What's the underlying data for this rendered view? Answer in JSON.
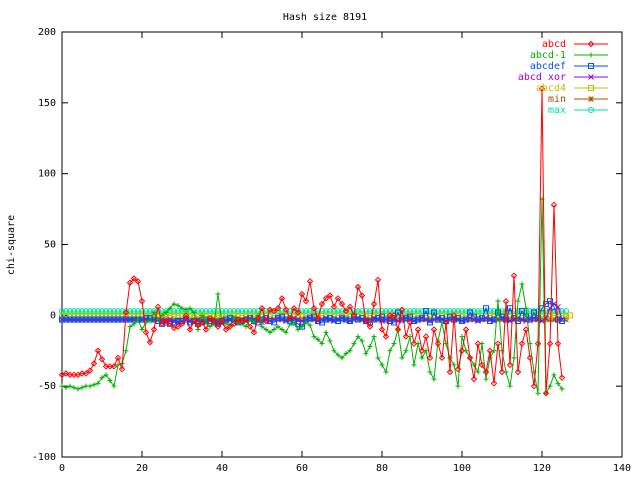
{
  "chart_data": {
    "type": "line",
    "title": "Hash size 8191",
    "xlabel": "",
    "ylabel": "chi-square",
    "xlim": [
      0,
      140
    ],
    "ylim": [
      -100,
      200
    ],
    "xticks": [
      0,
      20,
      40,
      60,
      80,
      100,
      120,
      140
    ],
    "yticks": [
      -100,
      -50,
      0,
      50,
      100,
      150,
      200
    ],
    "xtick_labels": [
      "0",
      "20",
      "40",
      "60",
      "80",
      "100",
      "120",
      "140"
    ],
    "ytick_labels": [
      "-100",
      "-50",
      "0",
      "50",
      "100",
      "150",
      "200"
    ],
    "grid": false,
    "legend_position": "top-right",
    "series": [
      {
        "name": "abcd",
        "color": "#ff0000",
        "marker": "diamond",
        "x": [
          0,
          1,
          2,
          3,
          4,
          5,
          6,
          7,
          8,
          9,
          10,
          11,
          12,
          13,
          14,
          15,
          16,
          17,
          18,
          19,
          20,
          21,
          22,
          23,
          24,
          25,
          26,
          27,
          28,
          29,
          30,
          31,
          32,
          33,
          34,
          35,
          36,
          37,
          38,
          39,
          40,
          41,
          42,
          43,
          44,
          45,
          46,
          47,
          48,
          49,
          50,
          51,
          52,
          53,
          54,
          55,
          56,
          57,
          58,
          59,
          60,
          61,
          62,
          63,
          64,
          65,
          66,
          67,
          68,
          69,
          70,
          71,
          72,
          73,
          74,
          75,
          76,
          77,
          78,
          79,
          80,
          81,
          82,
          83,
          84,
          85,
          86,
          87,
          88,
          89,
          90,
          91,
          92,
          93,
          94,
          95,
          96,
          97,
          98,
          99,
          100,
          101,
          102,
          103,
          104,
          105,
          106,
          107,
          108,
          109,
          110,
          111,
          112,
          113,
          114,
          115,
          116,
          117,
          118,
          119,
          120,
          121,
          122,
          123,
          124,
          125
        ],
        "y": [
          -42,
          -41,
          -42,
          -42,
          -42,
          -41,
          -41,
          -39,
          -34,
          -25,
          -31,
          -36,
          -36,
          -36,
          -30,
          -38,
          2,
          23,
          26,
          24,
          10,
          -12,
          -19,
          -10,
          6,
          -6,
          -4,
          -6,
          -9,
          -8,
          -6,
          0,
          -10,
          -4,
          -7,
          -5,
          -10,
          -2,
          -4,
          -8,
          -4,
          -10,
          -8,
          -6,
          -3,
          -4,
          -3,
          -8,
          -12,
          -2,
          5,
          -4,
          4,
          3,
          5,
          12,
          4,
          -2,
          5,
          2,
          15,
          10,
          24,
          5,
          -2,
          8,
          12,
          14,
          6,
          12,
          8,
          3,
          6,
          0,
          20,
          14,
          -4,
          -8,
          8,
          25,
          -10,
          -15,
          0,
          0,
          -10,
          4,
          -15,
          -5,
          -20,
          -10,
          -25,
          -15,
          -30,
          -10,
          -20,
          -30,
          -5,
          -40,
          0,
          -38,
          -25,
          -10,
          -30,
          -45,
          -20,
          -35,
          -40,
          -25,
          -48,
          -20,
          -40,
          10,
          -35,
          28,
          -40,
          -20,
          -10,
          -30,
          -50,
          -20,
          160,
          -55,
          -20,
          78,
          -20,
          -44
        ],
        "points": "first"
      },
      {
        "name": "abcd-1",
        "color": "#00b000",
        "marker": "plus",
        "x": [
          0,
          1,
          2,
          3,
          4,
          5,
          6,
          7,
          8,
          9,
          10,
          11,
          12,
          13,
          14,
          15,
          16,
          17,
          18,
          19,
          20,
          21,
          22,
          23,
          24,
          25,
          26,
          27,
          28,
          29,
          30,
          31,
          32,
          33,
          34,
          35,
          36,
          37,
          38,
          39,
          40,
          41,
          42,
          43,
          44,
          45,
          46,
          47,
          48,
          49,
          50,
          51,
          52,
          53,
          54,
          55,
          56,
          57,
          58,
          59,
          60,
          61,
          62,
          63,
          64,
          65,
          66,
          67,
          68,
          69,
          70,
          71,
          72,
          73,
          74,
          75,
          76,
          77,
          78,
          79,
          80,
          81,
          82,
          83,
          84,
          85,
          86,
          87,
          88,
          89,
          90,
          91,
          92,
          93,
          94,
          95,
          96,
          97,
          98,
          99,
          100,
          101,
          102,
          103,
          104,
          105,
          106,
          107,
          108,
          109,
          110,
          111,
          112,
          113,
          114,
          115,
          116,
          117,
          118,
          119,
          120,
          121,
          122,
          123,
          124,
          125
        ],
        "y": [
          -50,
          -51,
          -50,
          -51,
          -52,
          -51,
          -50,
          -50,
          -49,
          -48,
          -44,
          -42,
          -46,
          -50,
          -35,
          -34,
          -25,
          -8,
          -6,
          -3,
          -10,
          -5,
          -4,
          2,
          -3,
          0,
          2,
          5,
          8,
          7,
          5,
          4,
          5,
          2,
          -10,
          0,
          -5,
          -8,
          -6,
          15,
          -5,
          -6,
          -7,
          -2,
          -5,
          -6,
          -8,
          -3,
          -5,
          0,
          -8,
          -10,
          -12,
          -10,
          -8,
          -10,
          -12,
          -6,
          -5,
          -10,
          -8,
          -5,
          -7,
          -15,
          -17,
          -20,
          -12,
          -18,
          -25,
          -28,
          -30,
          -27,
          -25,
          -20,
          -15,
          -18,
          -27,
          -22,
          -15,
          -30,
          -35,
          -40,
          -25,
          -20,
          -10,
          -30,
          -25,
          -15,
          -35,
          -20,
          -30,
          -25,
          -40,
          -45,
          -18,
          -5,
          -20,
          -30,
          -35,
          -50,
          -15,
          -25,
          -30,
          -35,
          -40,
          -20,
          -45,
          -30,
          -25,
          10,
          -25,
          -40,
          -50,
          -30,
          10,
          22,
          5,
          -20,
          -40,
          -55,
          82,
          -55,
          -50,
          -42,
          -48,
          -52
        ],
        "points": "second"
      },
      {
        "name": "abcdef",
        "color": "#0050ff",
        "marker": "square",
        "y": [
          -3,
          -3,
          -3,
          -3,
          -3,
          -3,
          -3,
          -3,
          -3,
          -3,
          -3,
          -3,
          -3,
          -3,
          -3,
          -3,
          -3,
          -3,
          -3,
          -3,
          -3,
          -2,
          -2,
          -3,
          -4,
          -6,
          -5,
          -6,
          -5,
          -4,
          -4,
          -3,
          -5,
          -4,
          -6,
          -5,
          -3,
          -4,
          -5,
          -6,
          -4,
          -3,
          -2,
          -3,
          -5,
          -4,
          -3,
          -2,
          -4,
          -5,
          -3,
          -2,
          -4,
          -5,
          -2,
          -1,
          -3,
          -4,
          -5,
          -6,
          -8,
          -3,
          -2,
          -1,
          -4,
          -5,
          -3,
          -2,
          -3,
          -4,
          -2,
          -3,
          -4,
          -1,
          -3,
          -2,
          -4,
          -5,
          -3,
          -2,
          -1,
          -3,
          -4,
          -5,
          2,
          -3,
          -2,
          -1,
          -4,
          -3,
          -2,
          3,
          -5,
          2,
          -3,
          -2,
          -4,
          -1,
          -3,
          -2,
          -4,
          -3,
          2,
          -1,
          -3,
          -2,
          5,
          -4,
          -3,
          2,
          -1,
          -3,
          5,
          -2,
          -4,
          3,
          -1,
          -3,
          2,
          -2,
          5,
          8,
          10,
          6,
          -3,
          -4
        ]
      },
      {
        "name": "abcd xor",
        "color": "#a000e0",
        "marker": "x",
        "y": [
          -3,
          -3,
          -3,
          -3,
          -3,
          -3,
          -3,
          -3,
          -3,
          -3,
          -3,
          -3,
          -3,
          -3,
          -3,
          -3,
          -3,
          -3,
          -3,
          -3,
          -3,
          -3,
          -3,
          -3,
          -3,
          -3,
          -4,
          -3,
          -4,
          -5,
          -4,
          -3,
          -4,
          -5,
          -3,
          -4,
          -5,
          -3,
          -4,
          -5,
          -6,
          -4,
          -3,
          -4,
          -5,
          -3,
          -4,
          -2,
          -3,
          -4,
          -5,
          -3,
          -4,
          -3,
          -2,
          -3,
          -4,
          -3,
          -2,
          -3,
          -4,
          -3,
          -2,
          -3,
          -4,
          -3,
          -2,
          -3,
          -4,
          -3,
          -2,
          -3,
          -4,
          -3,
          -2,
          -3,
          -4,
          -3,
          -2,
          -3,
          -4,
          -3,
          -2,
          -3,
          -4,
          -3,
          -2,
          -3,
          -4,
          -3,
          -2,
          -3,
          -4,
          -3,
          -2,
          -3,
          -4,
          -3,
          -2,
          -3,
          -4,
          -3,
          -2,
          -3,
          -4,
          -3,
          -2,
          -3,
          -4,
          -3,
          -2,
          -3,
          -4,
          -3,
          -2,
          -3,
          -4,
          -3,
          -2,
          -3,
          -4,
          -2,
          5,
          8,
          6,
          -3
        ]
      },
      {
        "name": "abcd4",
        "color": "#c0c000",
        "marker": "square-open",
        "y": [
          -1,
          -1,
          -1,
          -1,
          -1,
          -1,
          -1,
          -1,
          -1,
          -1,
          -1,
          -1,
          -1,
          -1,
          -1,
          -1,
          -1,
          -1,
          -1,
          -1,
          -1,
          -1,
          -1,
          0,
          -1,
          -2,
          -1,
          0,
          -1,
          -2,
          -1,
          0,
          -1,
          -2,
          -1,
          0,
          -1,
          -2,
          -1,
          0,
          -1,
          -2,
          -1,
          0,
          -1,
          -2,
          -1,
          0,
          -1,
          -2,
          -1,
          0,
          -1,
          -2,
          -1,
          0,
          -1,
          -2,
          -1,
          0,
          -1,
          -2,
          -1,
          0,
          -1,
          -2,
          -1,
          0,
          -1,
          -2,
          -1,
          0,
          -1,
          -2,
          -1,
          0,
          -1,
          -2,
          -1,
          0,
          -1,
          -2,
          -1,
          0,
          -1,
          -2,
          -1,
          0,
          -1,
          -2,
          -1,
          0,
          -1,
          -2,
          -1,
          0,
          -1,
          -2,
          -1,
          0,
          -1,
          -2,
          -1,
          0,
          -1,
          -2,
          -1,
          0,
          -1,
          -2,
          -1,
          0,
          -1,
          -2,
          -1,
          0,
          -1,
          -2,
          -1,
          0,
          -1,
          -2,
          -1,
          0,
          -1,
          -2,
          -1,
          0
        ]
      },
      {
        "name": "min",
        "color": "#a05000",
        "marker": "star",
        "constant": -3
      },
      {
        "name": "max",
        "color": "#00e0a0",
        "marker": "circle",
        "constant": 3
      }
    ],
    "extra_flat_line": {
      "color": "#80ff00",
      "value": 2
    }
  }
}
